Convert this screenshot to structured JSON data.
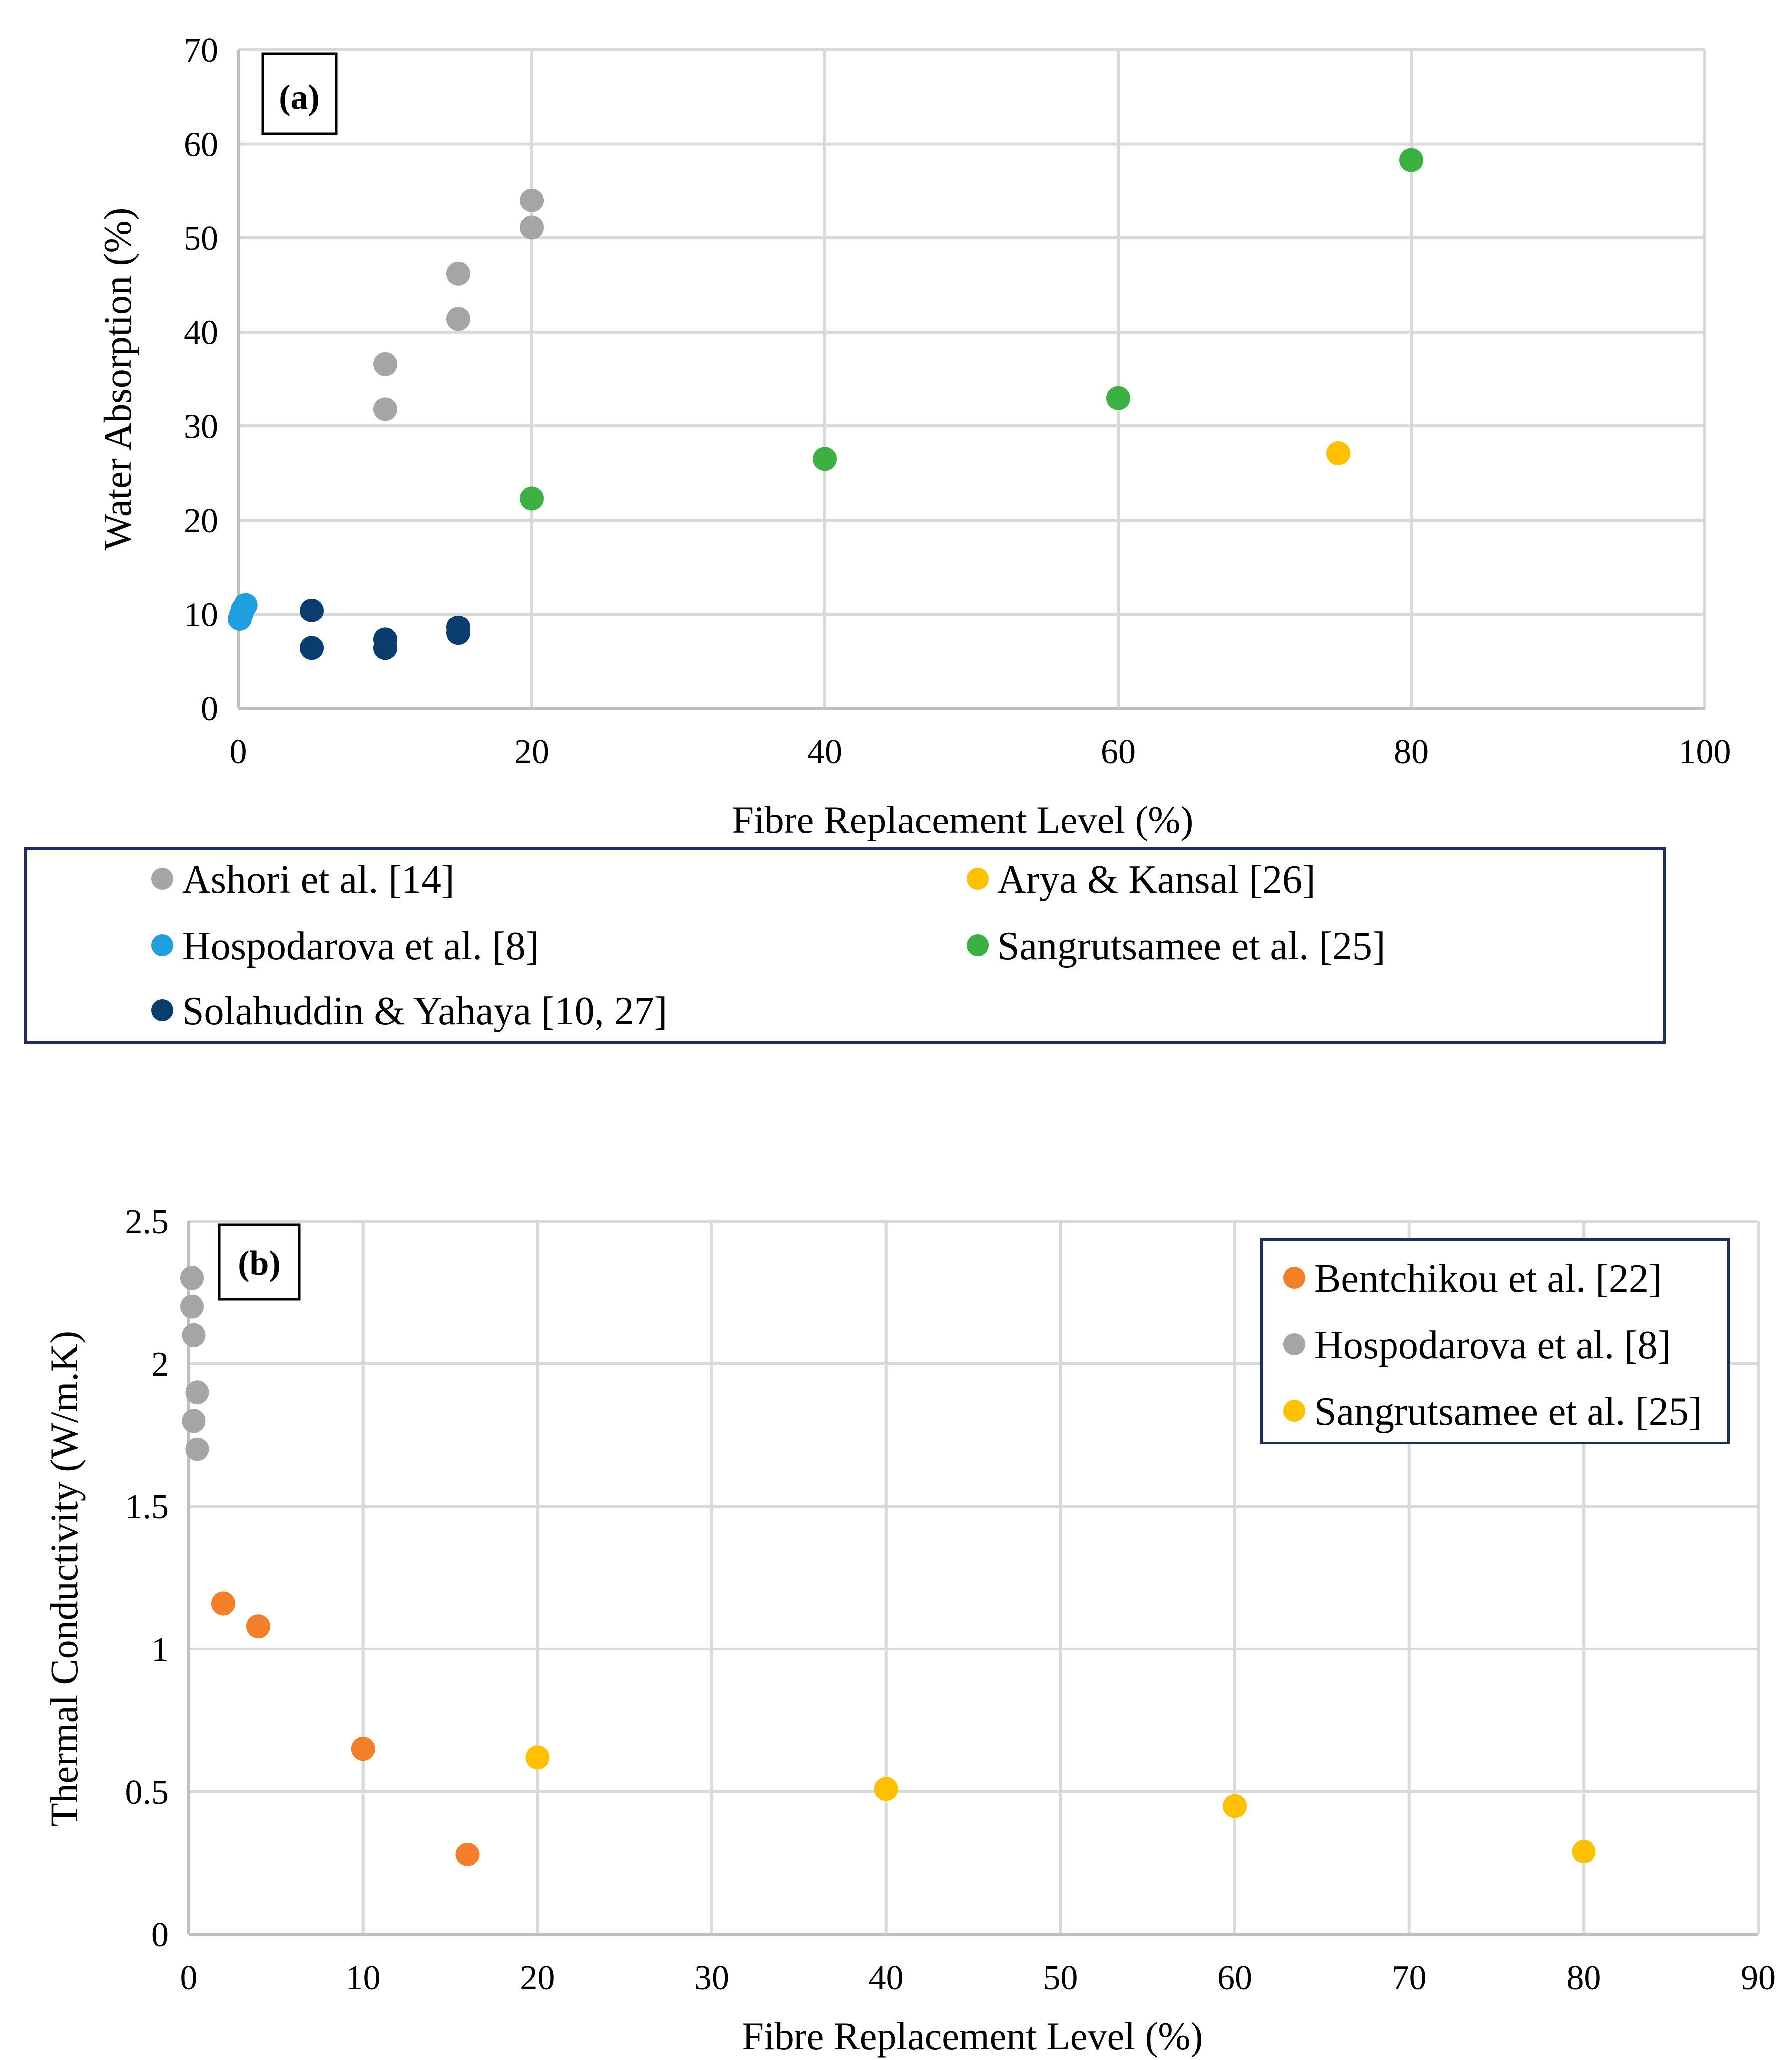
{
  "chart_data": [
    {
      "type": "scatter",
      "panel_label": "(a)",
      "title": "",
      "xlabel": "Fibre Replacement Level (%)",
      "ylabel": "Water Absorption (%)",
      "xlim": [
        0,
        100
      ],
      "ylim": [
        0,
        70
      ],
      "xticks": [
        0,
        20,
        40,
        60,
        80,
        100
      ],
      "yticks": [
        0,
        10,
        20,
        30,
        40,
        50,
        60,
        70
      ],
      "grid": true,
      "legend_position": "bottom",
      "series": [
        {
          "name": "Ashori et al. [14]",
          "color": "#a5a5a5",
          "points": [
            [
              10,
              36.6
            ],
            [
              10,
              31.8
            ],
            [
              15,
              46.2
            ],
            [
              15,
              41.4
            ],
            [
              20,
              54.0
            ],
            [
              20,
              51.1
            ]
          ]
        },
        {
          "name": "Arya & Kansal [26]",
          "color": "#ffc000",
          "points": [
            [
              75,
              27.1
            ]
          ]
        },
        {
          "name": "Hospodarova et al. [8]",
          "color": "#1f9ee0",
          "points": [
            [
              0.1,
              9.5
            ],
            [
              0.2,
              10.0
            ],
            [
              0.3,
              10.5
            ],
            [
              0.5,
              11.0
            ]
          ]
        },
        {
          "name": "Sangrutsamee et al. [25]",
          "color": "#3cb043",
          "points": [
            [
              20,
              22.3
            ],
            [
              40,
              26.5
            ],
            [
              60,
              33.0
            ],
            [
              80,
              58.3
            ]
          ]
        },
        {
          "name": "Solahuddin & Yahaya [10, 27]",
          "color": "#0a3d6e",
          "points": [
            [
              5,
              10.4
            ],
            [
              5,
              6.4
            ],
            [
              10,
              7.3
            ],
            [
              10,
              6.4
            ],
            [
              15,
              8.6
            ],
            [
              15,
              8.0
            ]
          ]
        }
      ]
    },
    {
      "type": "scatter",
      "panel_label": "(b)",
      "title": "",
      "xlabel": "Fibre Replacement Level (%)",
      "ylabel": "Thermal Conductivity (W/m.K)",
      "xlim": [
        0,
        90
      ],
      "ylim": [
        0,
        2.5
      ],
      "xticks": [
        0,
        10,
        20,
        30,
        40,
        50,
        60,
        70,
        80,
        90
      ],
      "yticks": [
        0,
        0.5,
        1,
        1.5,
        2,
        2.5
      ],
      "grid": true,
      "legend_position": "top-right",
      "series": [
        {
          "name": "Bentchikou et al. [22]",
          "color": "#f47f2a",
          "points": [
            [
              2,
              1.16
            ],
            [
              4,
              1.08
            ],
            [
              10,
              0.65
            ],
            [
              16,
              0.28
            ]
          ]
        },
        {
          "name": "Hospodarova et al. [8]",
          "color": "#a5a5a5",
          "points": [
            [
              0.2,
              2.3
            ],
            [
              0.2,
              2.2
            ],
            [
              0.3,
              2.1
            ],
            [
              0.5,
              1.9
            ],
            [
              0.3,
              1.8
            ],
            [
              0.5,
              1.7
            ]
          ]
        },
        {
          "name": "Sangrutsamee et al. [25]",
          "color": "#ffc000",
          "points": [
            [
              20,
              0.62
            ],
            [
              40,
              0.51
            ],
            [
              60,
              0.45
            ],
            [
              80,
              0.29
            ]
          ]
        }
      ]
    }
  ]
}
